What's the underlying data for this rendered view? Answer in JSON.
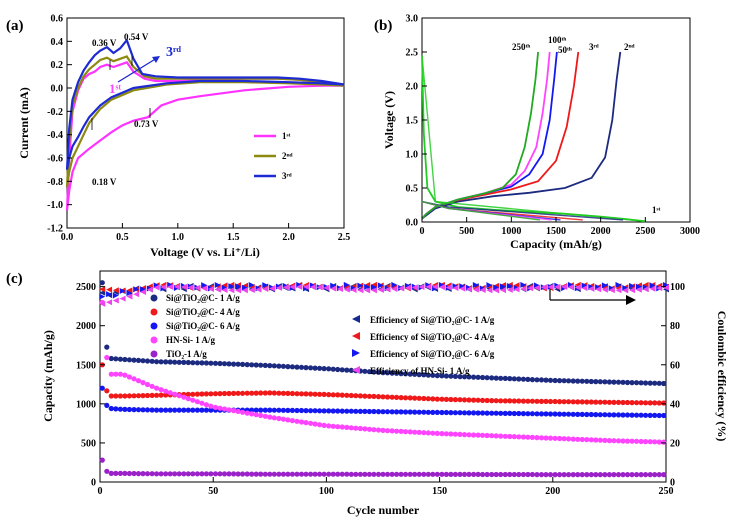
{
  "colors": {
    "pink": "#ff33ff",
    "olive": "#8c8a10",
    "blue": "#1e2ad2",
    "navy": "#1c2a80",
    "red": "#f01818",
    "bright_blue": "#1418f0",
    "magenta": "#ff44ff",
    "purple": "#9a22c8",
    "green": "#22cc22",
    "dark_blue": "#142a8c",
    "light_magenta": "#ee44ee"
  },
  "panel_a": {
    "label": "(a)",
    "xlabel": "Voltage (V vs. Li⁺/Li)",
    "ylabel": "Current (mA)",
    "xlim": [
      0,
      2.5
    ],
    "ylim": [
      -1.2,
      0.6
    ],
    "xticks": [
      "0.0",
      "0.5",
      "1.0",
      "1.5",
      "2.0",
      "2.5"
    ],
    "yticks": [
      "-1.2",
      "-1.0",
      "-0.8",
      "-0.6",
      "-0.4",
      "-0.2",
      "0.0",
      "0.2",
      "0.4",
      "0.6"
    ],
    "annotations": [
      "0.36 V",
      "0.54 V",
      "0.18 V",
      "0.73 V",
      "1ˢᵗ",
      "3ʳᵈ"
    ],
    "legend": [
      "1ˢᵗ",
      "2ⁿᵈ",
      "3ʳᵈ"
    ]
  },
  "panel_b": {
    "label": "(b)",
    "xlabel": "Capacity (mAh/g)",
    "ylabel": "Voltage (V)",
    "xlim": [
      0,
      3000
    ],
    "ylim": [
      0,
      3.0
    ],
    "xticks": [
      "0",
      "500",
      "1000",
      "1500",
      "2000",
      "2500",
      "3000"
    ],
    "yticks": [
      "0.0",
      "0.5",
      "1.0",
      "1.5",
      "2.0",
      "2.5",
      "3.0"
    ],
    "curve_labels": [
      "250ᵗʰ",
      "100ᵗʰ",
      "50ᵗʰ",
      "3ʳᵈ",
      "2ⁿᵈ",
      "1ˢᵗ"
    ]
  },
  "panel_c": {
    "label": "(c)",
    "xlabel": "Cycle number",
    "ylabel": "Capacity (mAh/g)",
    "ylabel_right": "Coulombic efficiency (%)",
    "xticks": [
      "0",
      "50",
      "100",
      "150",
      "200",
      "250"
    ],
    "yticks_left": [
      "0",
      "500",
      "1000",
      "1500",
      "2000",
      "2500"
    ],
    "yticks_right": [
      "0",
      "20",
      "40",
      "60",
      "80",
      "100"
    ],
    "legend_left": [
      "Si@TiO₂@C- 1 A/g",
      "Si@TiO₂@C- 4 A/g",
      "Si@TiO₂@C- 6 A/g",
      "HN-Si- 1 A/g",
      "TiO₂-1 A/g"
    ],
    "legend_right": [
      "Efficiency of Si@TiO₂@C- 1 A/g",
      "Efficiency of Si@TiO₂@C- 4 A/g",
      "Efficiency of Si@TiO₂@C- 6 A/g",
      "Efficiency of HN-Si- 1 A/g"
    ]
  },
  "chart_data": [
    {
      "type": "line",
      "title": "",
      "xlabel": "Voltage (V vs. Li⁺/Li)",
      "ylabel": "Current (mA)",
      "xlim": [
        0,
        2.5
      ],
      "ylim": [
        -1.2,
        0.6
      ],
      "series": [
        {
          "name": "1ˢᵗ",
          "x": [
            0.0,
            0.02,
            0.05,
            0.1,
            0.15,
            0.2,
            0.25,
            0.3,
            0.36,
            0.42,
            0.48,
            0.54,
            0.6,
            0.7,
            0.8,
            1.0,
            1.3,
            1.6,
            1.9,
            2.1,
            2.3,
            2.5,
            2.3,
            2.0,
            1.6,
            1.2,
            1.0,
            0.85,
            0.73,
            0.6,
            0.5,
            0.4,
            0.3,
            0.2,
            0.1,
            0.05,
            0.02,
            0.0
          ],
          "y": [
            -1.05,
            -0.6,
            -0.2,
            -0.02,
            0.08,
            0.12,
            0.14,
            0.18,
            0.2,
            0.18,
            0.2,
            0.22,
            0.14,
            0.08,
            0.06,
            0.06,
            0.07,
            0.08,
            0.08,
            0.07,
            0.05,
            0.02,
            0.02,
            0.01,
            -0.02,
            -0.07,
            -0.1,
            -0.15,
            -0.25,
            -0.28,
            -0.32,
            -0.38,
            -0.45,
            -0.52,
            -0.6,
            -0.72,
            -0.88,
            -1.05
          ]
        },
        {
          "name": "2ⁿᵈ",
          "x": [
            0.0,
            0.02,
            0.05,
            0.1,
            0.15,
            0.2,
            0.25,
            0.3,
            0.36,
            0.42,
            0.48,
            0.54,
            0.6,
            0.7,
            0.8,
            1.0,
            1.3,
            1.6,
            1.9,
            2.1,
            2.3,
            2.5,
            2.3,
            2.0,
            1.6,
            1.2,
            0.9,
            0.6,
            0.4,
            0.3,
            0.2,
            0.15,
            0.1,
            0.05,
            0.02,
            0.0
          ],
          "y": [
            -0.85,
            -0.45,
            -0.15,
            0.0,
            0.1,
            0.16,
            0.2,
            0.24,
            0.26,
            0.23,
            0.25,
            0.27,
            0.18,
            0.1,
            0.08,
            0.08,
            0.08,
            0.08,
            0.08,
            0.07,
            0.05,
            0.02,
            0.03,
            0.04,
            0.05,
            0.05,
            0.03,
            -0.02,
            -0.1,
            -0.18,
            -0.3,
            -0.4,
            -0.5,
            -0.6,
            -0.72,
            -0.85
          ]
        },
        {
          "name": "3ʳᵈ",
          "x": [
            0.0,
            0.02,
            0.05,
            0.1,
            0.15,
            0.2,
            0.25,
            0.3,
            0.36,
            0.42,
            0.48,
            0.54,
            0.6,
            0.68,
            0.8,
            1.0,
            1.3,
            1.6,
            1.9,
            2.1,
            2.3,
            2.5,
            2.3,
            2.0,
            1.6,
            1.2,
            0.9,
            0.6,
            0.4,
            0.3,
            0.2,
            0.15,
            0.1,
            0.05,
            0.02,
            0.0
          ],
          "y": [
            -0.7,
            -0.35,
            -0.1,
            0.05,
            0.15,
            0.22,
            0.28,
            0.32,
            0.35,
            0.3,
            0.34,
            0.41,
            0.25,
            0.12,
            0.1,
            0.09,
            0.09,
            0.09,
            0.09,
            0.08,
            0.06,
            0.03,
            0.04,
            0.05,
            0.06,
            0.06,
            0.04,
            0.0,
            -0.08,
            -0.15,
            -0.25,
            -0.33,
            -0.42,
            -0.5,
            -0.6,
            -0.7
          ]
        }
      ]
    },
    {
      "type": "line",
      "title": "",
      "xlabel": "Capacity (mAh/g)",
      "ylabel": "Voltage (V)",
      "xlim": [
        0,
        3000
      ],
      "ylim": [
        0,
        3.0
      ],
      "series": [
        {
          "name": "1ˢᵗ",
          "x": [
            0,
            20,
            60,
            150,
            400,
            800,
            1200,
            1600,
            2000,
            2300,
            2500
          ],
          "y": [
            2.45,
            1.3,
            0.5,
            0.3,
            0.22,
            0.18,
            0.15,
            0.12,
            0.08,
            0.04,
            0.01
          ]
        },
        {
          "name": "2ⁿᵈ",
          "x": [
            0,
            50,
            150,
            400,
            800,
            1200,
            1600,
            1900,
            2050,
            2130,
            2180,
            2220
          ],
          "y": [
            0.05,
            0.1,
            0.2,
            0.3,
            0.38,
            0.43,
            0.5,
            0.65,
            0.95,
            1.5,
            2.1,
            2.5
          ]
        },
        {
          "name": "3ʳᵈ",
          "x": [
            0,
            50,
            150,
            400,
            700,
            1000,
            1300,
            1500,
            1620,
            1700,
            1750
          ],
          "y": [
            0.05,
            0.12,
            0.22,
            0.32,
            0.4,
            0.48,
            0.6,
            0.9,
            1.4,
            2.0,
            2.5
          ]
        },
        {
          "name": "50ᵗʰ",
          "x": [
            0,
            50,
            150,
            400,
            700,
            1000,
            1200,
            1350,
            1430,
            1480,
            1510
          ],
          "y": [
            0.05,
            0.12,
            0.22,
            0.33,
            0.42,
            0.52,
            0.7,
            1.0,
            1.5,
            2.1,
            2.5
          ]
        },
        {
          "name": "100ᵗʰ",
          "x": [
            0,
            50,
            150,
            400,
            700,
            1000,
            1150,
            1280,
            1350,
            1400,
            1430
          ],
          "y": [
            0.05,
            0.12,
            0.22,
            0.33,
            0.42,
            0.55,
            0.75,
            1.1,
            1.6,
            2.1,
            2.5
          ]
        },
        {
          "name": "250ᵗʰ",
          "x": [
            0,
            50,
            150,
            400,
            700,
            900,
            1050,
            1150,
            1220,
            1270,
            1300
          ],
          "y": [
            0.05,
            0.12,
            0.22,
            0.33,
            0.42,
            0.5,
            0.7,
            1.1,
            1.6,
            2.1,
            2.5
          ]
        }
      ]
    },
    {
      "type": "scatter",
      "title": "",
      "xlabel": "Cycle number",
      "ylabel": "Capacity (mAh/g)",
      "ylabel_right": "Coulombic efficiency (%)",
      "xlim": [
        0,
        250
      ],
      "ylim": [
        0,
        2700
      ],
      "ylim_right": [
        0,
        108
      ],
      "series": [
        {
          "name": "Si@TiO₂@C- 1 A/g",
          "x": [
            1,
            2,
            5,
            10,
            25,
            50,
            75,
            100,
            125,
            150,
            175,
            200,
            225,
            250
          ],
          "y": [
            2550,
            1800,
            1580,
            1570,
            1540,
            1520,
            1490,
            1450,
            1400,
            1360,
            1330,
            1300,
            1280,
            1260
          ]
        },
        {
          "name": "Si@TiO₂@C- 4 A/g",
          "x": [
            1,
            2,
            5,
            10,
            25,
            50,
            75,
            100,
            125,
            150,
            175,
            200,
            225,
            250
          ],
          "y": [
            1500,
            1200,
            1100,
            1100,
            1110,
            1130,
            1140,
            1120,
            1090,
            1060,
            1040,
            1030,
            1020,
            1010
          ]
        },
        {
          "name": "Si@TiO₂@C- 6 A/g",
          "x": [
            1,
            2,
            5,
            10,
            25,
            50,
            75,
            100,
            125,
            150,
            175,
            200,
            225,
            250
          ],
          "y": [
            1200,
            1000,
            940,
            930,
            920,
            920,
            920,
            910,
            900,
            890,
            880,
            870,
            860,
            850
          ]
        },
        {
          "name": "HN-Si- 1 A/g",
          "x": [
            1,
            2,
            5,
            10,
            25,
            50,
            75,
            100,
            125,
            150,
            175,
            200,
            225,
            250
          ],
          "y": [
            2300,
            1700,
            1380,
            1380,
            1200,
            960,
            830,
            720,
            660,
            620,
            590,
            560,
            530,
            510
          ]
        },
        {
          "name": "TiO₂-1 A/g",
          "x": [
            1,
            2,
            5,
            10,
            25,
            50,
            75,
            100,
            125,
            150,
            175,
            200,
            225,
            250
          ],
          "y": [
            280,
            150,
            110,
            110,
            105,
            105,
            100,
            100,
            98,
            98,
            96,
            95,
            95,
            95
          ]
        },
        {
          "name": "Efficiency of Si@TiO₂@C- 1 A/g",
          "x": [
            1,
            25,
            50,
            100,
            150,
            200,
            250
          ],
          "y": [
            96,
            99.5,
            99.5,
            99.5,
            99.5,
            99.5,
            99.5
          ]
        },
        {
          "name": "Efficiency of Si@TiO₂@C- 4 A/g",
          "x": [
            1,
            25,
            50,
            100,
            150,
            200,
            250
          ],
          "y": [
            98,
            100,
            100,
            100,
            100,
            100,
            100
          ]
        },
        {
          "name": "Efficiency of Si@TiO₂@C- 6 A/g",
          "x": [
            1,
            25,
            50,
            100,
            150,
            200,
            250
          ],
          "y": [
            95,
            100,
            100,
            100,
            100,
            100,
            100
          ]
        },
        {
          "name": "Efficiency of HN-Si- 1 A/g",
          "x": [
            1,
            25,
            50,
            100,
            150,
            200,
            250
          ],
          "y": [
            92,
            99,
            99,
            99,
            99,
            99,
            99
          ]
        }
      ]
    }
  ]
}
